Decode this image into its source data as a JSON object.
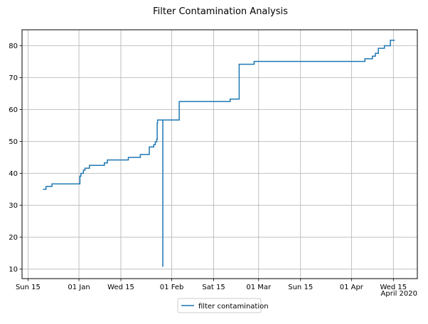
{
  "chart_data": {
    "type": "line",
    "title": "Filter Contamination Analysis",
    "xlabel": "",
    "ylabel": "",
    "x_axis_type": "date",
    "xlim": [
      "2019-12-13",
      "2020-04-23"
    ],
    "ylim": [
      7,
      85
    ],
    "x_ticks": [
      {
        "date": "2019-12-15",
        "label": "Sun 15"
      },
      {
        "date": "2020-01-01",
        "label": "01 Jan"
      },
      {
        "date": "2020-01-15",
        "label": "Wed 15"
      },
      {
        "date": "2020-02-01",
        "label": "01 Feb"
      },
      {
        "date": "2020-02-15",
        "label": "Sat 15"
      },
      {
        "date": "2020-03-01",
        "label": "01 Mar"
      },
      {
        "date": "2020-03-15",
        "label": "Sun 15"
      },
      {
        "date": "2020-04-01",
        "label": "01 Apr"
      },
      {
        "date": "2020-04-15",
        "label": "Wed 15"
      }
    ],
    "x_offset_label": "April 2020",
    "y_ticks": [
      10,
      20,
      30,
      40,
      50,
      60,
      70,
      80
    ],
    "grid": true,
    "legend_position": "bottom-center",
    "line_style": "steps-post",
    "series": [
      {
        "name": "filter contamination",
        "color": "#1f77b4",
        "points": [
          [
            "2019-12-20",
            35.0
          ],
          [
            "2019-12-21",
            35.9
          ],
          [
            "2019-12-23",
            36.7
          ],
          [
            "2020-01-01",
            36.7
          ],
          [
            "2020-01-01T08:00",
            39.1
          ],
          [
            "2020-01-01T16:00",
            40.0
          ],
          [
            "2020-01-02",
            40.0
          ],
          [
            "2020-01-02T12:00",
            41.0
          ],
          [
            "2020-01-03",
            41.6
          ],
          [
            "2020-01-04T12:00",
            42.5
          ],
          [
            "2020-01-09",
            42.5
          ],
          [
            "2020-01-09T12:00",
            43.3
          ],
          [
            "2020-01-10T12:00",
            44.2
          ],
          [
            "2020-01-17",
            44.2
          ],
          [
            "2020-01-17T12:00",
            45.0
          ],
          [
            "2020-01-21",
            45.0
          ],
          [
            "2020-01-21T12:00",
            45.9
          ],
          [
            "2020-01-24T12:00",
            48.3
          ],
          [
            "2020-01-26",
            49.0
          ],
          [
            "2020-01-26T12:00",
            49.9
          ],
          [
            "2020-01-27",
            50.7
          ],
          [
            "2020-01-27T03:00",
            55.7
          ],
          [
            "2020-01-27T06:00",
            56.7
          ],
          [
            "2020-01-29",
            56.7
          ],
          [
            "2020-01-29T00:01",
            10.7
          ],
          [
            "2020-01-29T00:02",
            56.7
          ],
          [
            "2020-02-03",
            56.7
          ],
          [
            "2020-02-03T12:00",
            62.5
          ],
          [
            "2020-02-20",
            62.5
          ],
          [
            "2020-02-20T12:00",
            63.3
          ],
          [
            "2020-02-23T12:00",
            74.2
          ],
          [
            "2020-02-28",
            74.2
          ],
          [
            "2020-02-28T12:00",
            75.1
          ],
          [
            "2020-04-05",
            75.1
          ],
          [
            "2020-04-05T12:00",
            75.9
          ],
          [
            "2020-04-08",
            76.7
          ],
          [
            "2020-04-09",
            77.6
          ],
          [
            "2020-04-10",
            79.2
          ],
          [
            "2020-04-12",
            80.0
          ],
          [
            "2020-04-14",
            81.7
          ],
          [
            "2020-04-15T12:00",
            81.7
          ]
        ]
      }
    ]
  }
}
